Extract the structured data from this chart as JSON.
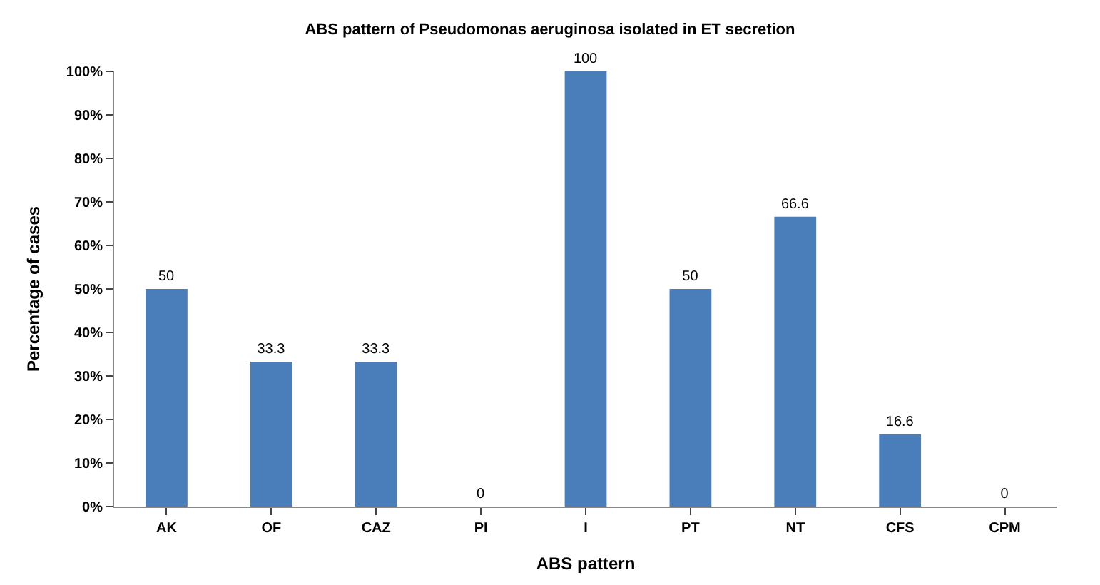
{
  "chart_data": {
    "type": "bar",
    "title": "ABS pattern of Pseudomonas aeruginosa isolated in ET secretion",
    "xlabel": "ABS pattern",
    "ylabel": "Percentage of cases",
    "categories": [
      "AK",
      "OF",
      "CAZ",
      "PI",
      "I",
      "PT",
      "NT",
      "CFS",
      "CPM"
    ],
    "values": [
      50,
      33.3,
      33.3,
      0,
      100,
      50,
      66.6,
      16.6,
      0
    ],
    "color": "#4a7ebb",
    "ylim": [
      0,
      100
    ],
    "yticks": [
      {
        "value": 0,
        "label": "0%"
      },
      {
        "value": 10,
        "label": "10%"
      },
      {
        "value": 20,
        "label": "20%"
      },
      {
        "value": 30,
        "label": "30%"
      },
      {
        "value": 40,
        "label": "40%"
      },
      {
        "value": 50,
        "label": "50%"
      },
      {
        "value": 60,
        "label": "60%"
      },
      {
        "value": 70,
        "label": "70%"
      },
      {
        "value": 80,
        "label": "80%"
      },
      {
        "value": 90,
        "label": "90%"
      },
      {
        "value": 100,
        "label": "100%"
      }
    ],
    "data_labels": true
  }
}
